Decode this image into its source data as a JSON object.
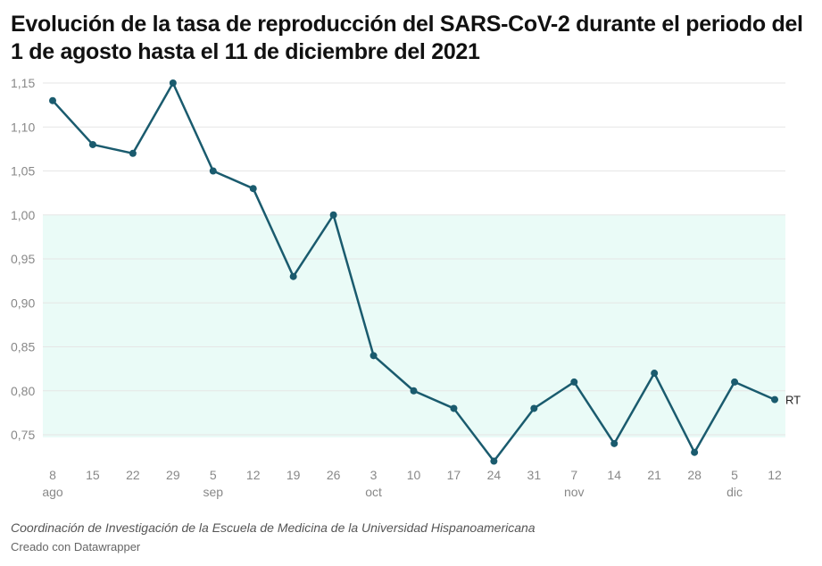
{
  "title": "Evolución de la tasa de reproducción del SARS-CoV-2 durante el periodo del 1 de agosto hasta el 11 de diciembre del 2021",
  "source": "Coordinación de Investigación de la Escuela de Medicina de la Universidad Hispanoamericana",
  "credit": "Creado con Datawrapper",
  "colors": {
    "line": "#1a5b6e",
    "band": "#eafbf7",
    "grid": "#e6e6e6",
    "tick": "#888888"
  },
  "chart_data": {
    "type": "line",
    "title": "Evolución de la tasa de reproducción del SARS-CoV-2 durante el periodo del 1 de agosto hasta el 11 de diciembre del 2021",
    "xlabel": "",
    "ylabel": "",
    "ylim": [
      0.72,
      1.15
    ],
    "yticks": [
      "1,15",
      "1,10",
      "1,05",
      "1,00",
      "0,95",
      "0,90",
      "0,85",
      "0,80",
      "0,75"
    ],
    "ytick_values": [
      1.15,
      1.1,
      1.05,
      1.0,
      0.95,
      0.9,
      0.85,
      0.8,
      0.75
    ],
    "band": {
      "from": 0.75,
      "to": 1.0
    },
    "categories": [
      "8",
      "15",
      "22",
      "29",
      "5",
      "12",
      "19",
      "26",
      "3",
      "10",
      "17",
      "24",
      "31",
      "7",
      "14",
      "21",
      "28",
      "5",
      "12"
    ],
    "month_labels": [
      {
        "index": 0,
        "label": "ago"
      },
      {
        "index": 4,
        "label": "sep"
      },
      {
        "index": 8,
        "label": "oct"
      },
      {
        "index": 13,
        "label": "nov"
      },
      {
        "index": 17,
        "label": "dic"
      }
    ],
    "series": [
      {
        "name": "RT",
        "values": [
          1.13,
          1.08,
          1.07,
          1.15,
          1.05,
          1.03,
          0.93,
          1.0,
          0.84,
          0.8,
          0.78,
          0.72,
          0.78,
          0.81,
          0.74,
          0.82,
          0.73,
          0.81,
          0.79
        ]
      }
    ],
    "grid": true
  }
}
